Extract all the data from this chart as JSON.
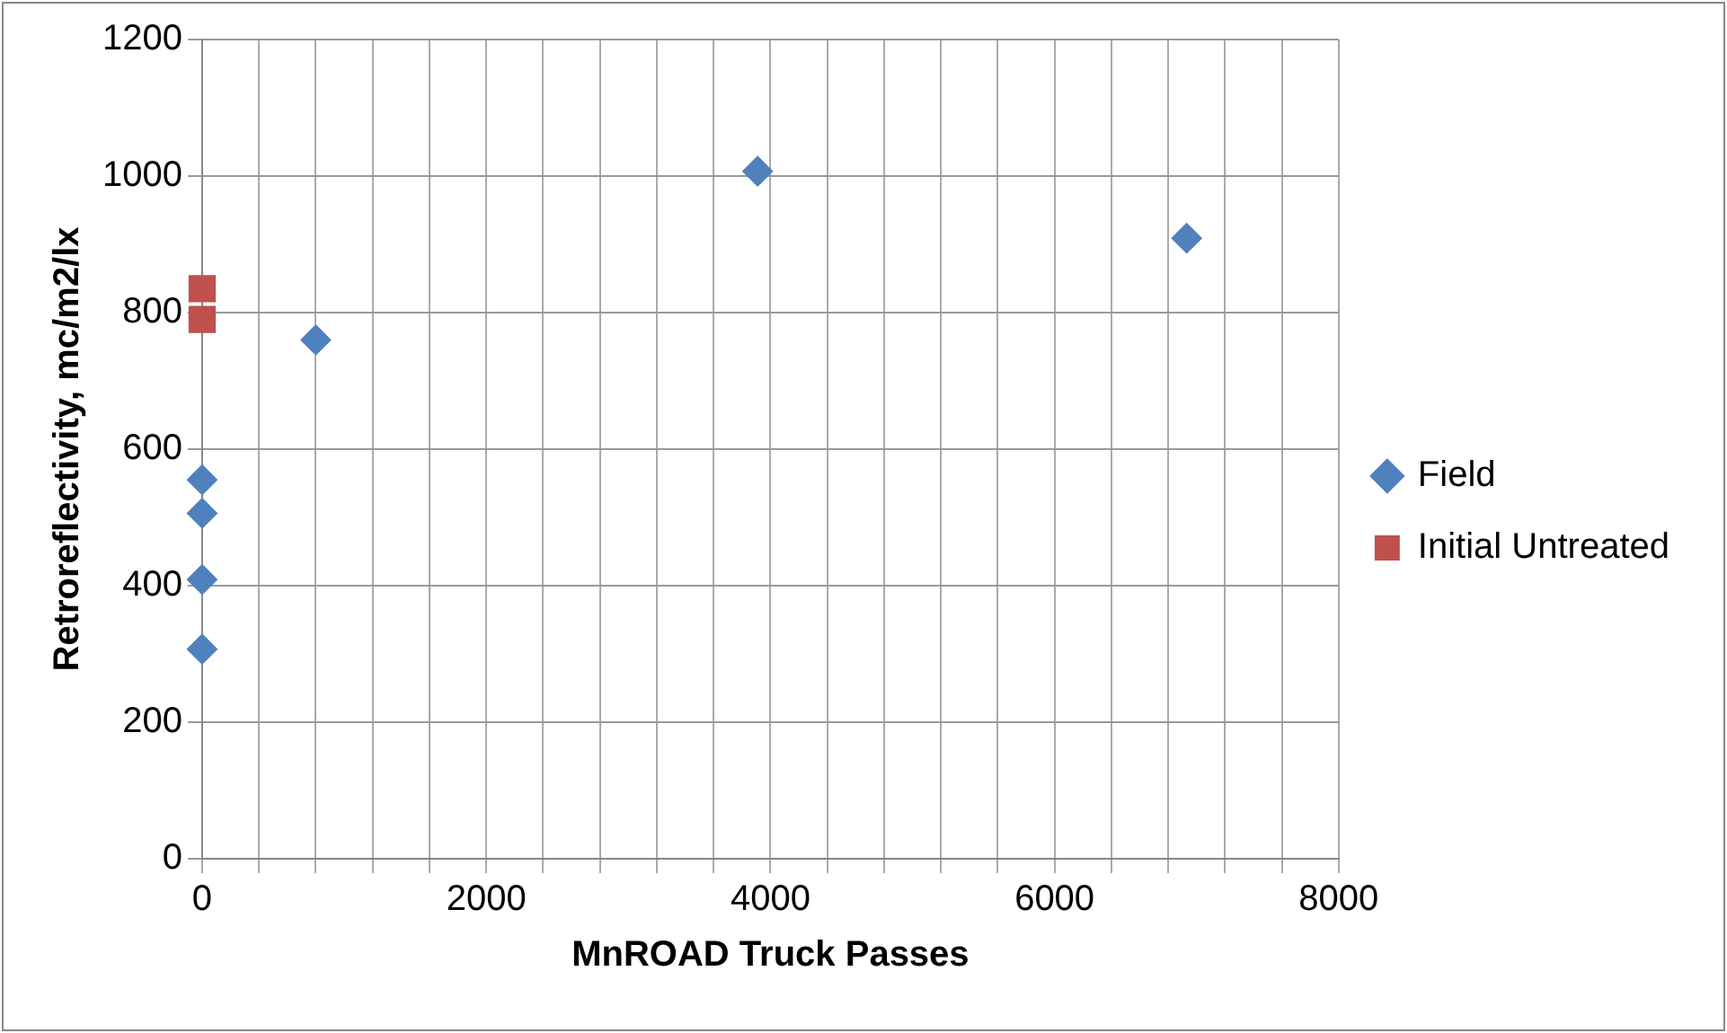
{
  "chart_data": {
    "type": "scatter",
    "xlabel": "MnROAD Truck Passes",
    "ylabel": "Retroreflectivity, mc/m2/lx",
    "series": [
      {
        "name": "Field",
        "color": "#4f81bd",
        "marker": "diamond",
        "x": [
          0,
          0,
          0,
          0,
          800,
          3910,
          6930
        ],
        "values": [
          307,
          409,
          506,
          555,
          760,
          1007,
          909
        ]
      },
      {
        "name": "Initial Untreated",
        "color": "#c0504d",
        "marker": "square",
        "x": [
          0,
          0
        ],
        "values": [
          790,
          835
        ]
      }
    ],
    "xlim": [
      0,
      8000
    ],
    "xticks": [
      0,
      {
        "value": 400,
        "label": null
      },
      {
        "value": 800,
        "label": null
      },
      {
        "value": 1200,
        "label": null
      },
      {
        "value": 1600,
        "label": null
      },
      2000,
      {
        "value": 2400,
        "label": null
      },
      {
        "value": 2800,
        "label": null
      },
      {
        "value": 3200,
        "label": null
      },
      {
        "value": 3600,
        "label": null
      },
      4000,
      {
        "value": 4400,
        "label": null
      },
      {
        "value": 4800,
        "label": null
      },
      {
        "value": 5200,
        "label": null
      },
      {
        "value": 5600,
        "label": null
      },
      6000,
      {
        "value": 6400,
        "label": null
      },
      {
        "value": 6800,
        "label": null
      },
      {
        "value": 7200,
        "label": null
      },
      {
        "value": 7600,
        "label": null
      },
      8000
    ],
    "ylim": [
      0,
      1200
    ],
    "yticks": [
      0,
      200,
      400,
      600,
      800,
      1000,
      1200
    ],
    "grid": true,
    "legend": "right"
  }
}
